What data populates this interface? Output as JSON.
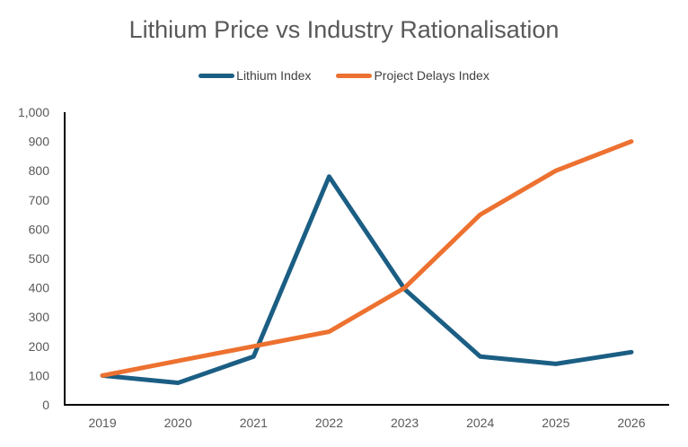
{
  "chart_data": {
    "type": "line",
    "title": "Lithium Price vs Industry Rationalisation",
    "xlabel": "",
    "ylabel": "",
    "categories": [
      "2019",
      "2020",
      "2021",
      "2022",
      "2023",
      "2024",
      "2025",
      "2026"
    ],
    "series": [
      {
        "name": "Lithium Index",
        "color": "#1b5e84",
        "values": [
          100,
          75,
          165,
          780,
          395,
          165,
          140,
          180
        ]
      },
      {
        "name": "Project Delays Index",
        "color": "#ed7130",
        "values": [
          100,
          150,
          200,
          250,
          400,
          650,
          800,
          900
        ]
      }
    ],
    "ylim": [
      0,
      1000
    ],
    "yticks": [
      0,
      100,
      200,
      300,
      400,
      500,
      600,
      700,
      800,
      900,
      1000
    ],
    "ytick_labels": [
      "0",
      "100",
      "200",
      "300",
      "400",
      "500",
      "600",
      "700",
      "800",
      "900",
      "1,000"
    ],
    "grid": false,
    "legend_position": "top-center"
  }
}
